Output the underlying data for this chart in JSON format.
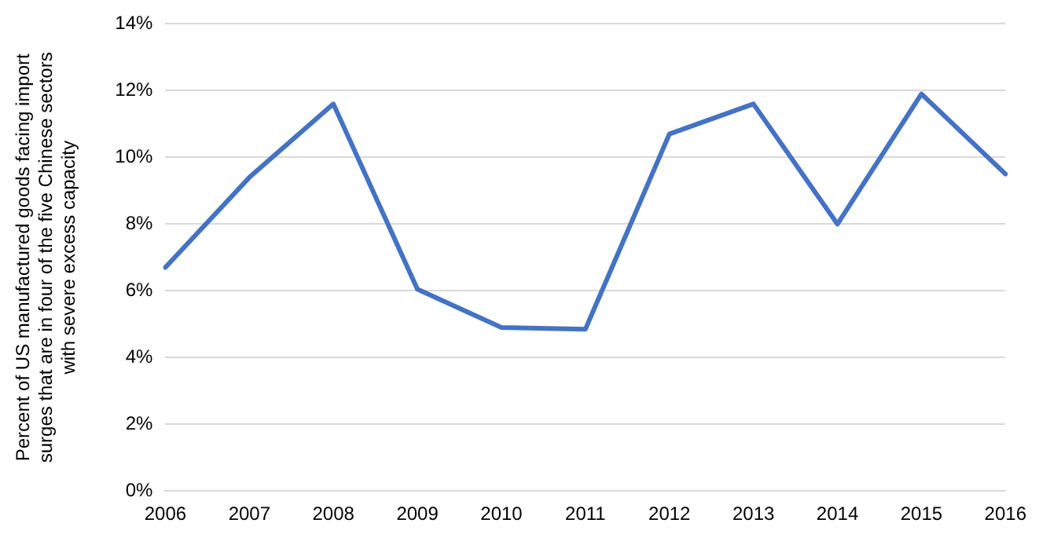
{
  "chart_data": {
    "type": "line",
    "ylabel": "Percent of US manufactured goods facing import surges that are in four of the five Chinese sectors with severe excess capacity",
    "categories": [
      "2006",
      "2007",
      "2008",
      "2009",
      "2010",
      "2011",
      "2012",
      "2013",
      "2014",
      "2015",
      "2016"
    ],
    "series": [
      {
        "color": "#4472c4",
        "values": [
          6.7,
          9.4,
          11.6,
          6.05,
          4.9,
          4.85,
          10.7,
          11.6,
          8.0,
          11.9,
          9.5
        ]
      }
    ],
    "ylim": [
      0,
      14
    ],
    "yticks": [
      {
        "value": 0,
        "label": "0%"
      },
      {
        "value": 2,
        "label": "2%"
      },
      {
        "value": 4,
        "label": "4%"
      },
      {
        "value": 6,
        "label": "6%"
      },
      {
        "value": 8,
        "label": "8%"
      },
      {
        "value": 10,
        "label": "10%"
      },
      {
        "value": 12,
        "label": "12%"
      },
      {
        "value": 14,
        "label": "14%"
      }
    ],
    "grid": "y",
    "legend": false,
    "marker": "none",
    "line_style": "solid"
  }
}
